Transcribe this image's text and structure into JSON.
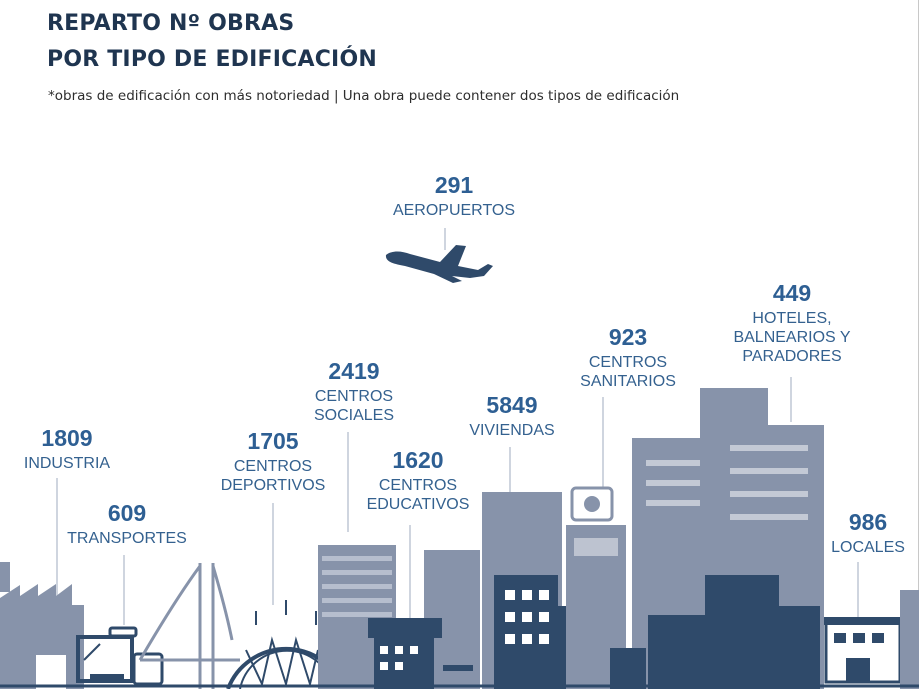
{
  "title_line1": "REPARTO Nº OBRAS",
  "title_line2": "POR TIPO DE EDIFICACIÓN",
  "subtitle": "*obras de edificación con más notoriedad |  Una obra puede contener dos tipos de edificación",
  "colors": {
    "title": "#1f3550",
    "value": "#2e5f93",
    "label": "#34618f",
    "building_light": "#8793aa",
    "building_dark": "#2f4a6a",
    "accent": "#d7dce5"
  },
  "chart_data": {
    "type": "table",
    "title": "REPARTO Nº OBRAS POR TIPO DE EDIFICACIÓN",
    "categories": [
      {
        "label": "INDUSTRIA",
        "value": 1809,
        "icon": "factory-icon"
      },
      {
        "label": "TRANSPORTES",
        "value": 609,
        "icon": "bus-stop-icon"
      },
      {
        "label": "AEROPUERTOS",
        "value": 291,
        "icon": "airplane-icon"
      },
      {
        "label": "CENTROS DEPORTIVOS",
        "value": 1705,
        "icon": "stadium-icon"
      },
      {
        "label": "CENTROS SOCIALES",
        "value": 2419,
        "icon": "office-tower-icon"
      },
      {
        "label": "CENTROS EDUCATIVOS",
        "value": 1620,
        "icon": "school-icon"
      },
      {
        "label": "VIVIENDAS",
        "value": 5849,
        "icon": "apartment-block-icon"
      },
      {
        "label": "CENTROS SANITARIOS",
        "value": 923,
        "icon": "hospital-icon"
      },
      {
        "label": "HOTELES, BALNEARIOS Y PARADORES",
        "value": 449,
        "icon": "hotel-tower-icon"
      },
      {
        "label": "LOCALES",
        "value": 986,
        "icon": "shop-icon"
      }
    ]
  }
}
